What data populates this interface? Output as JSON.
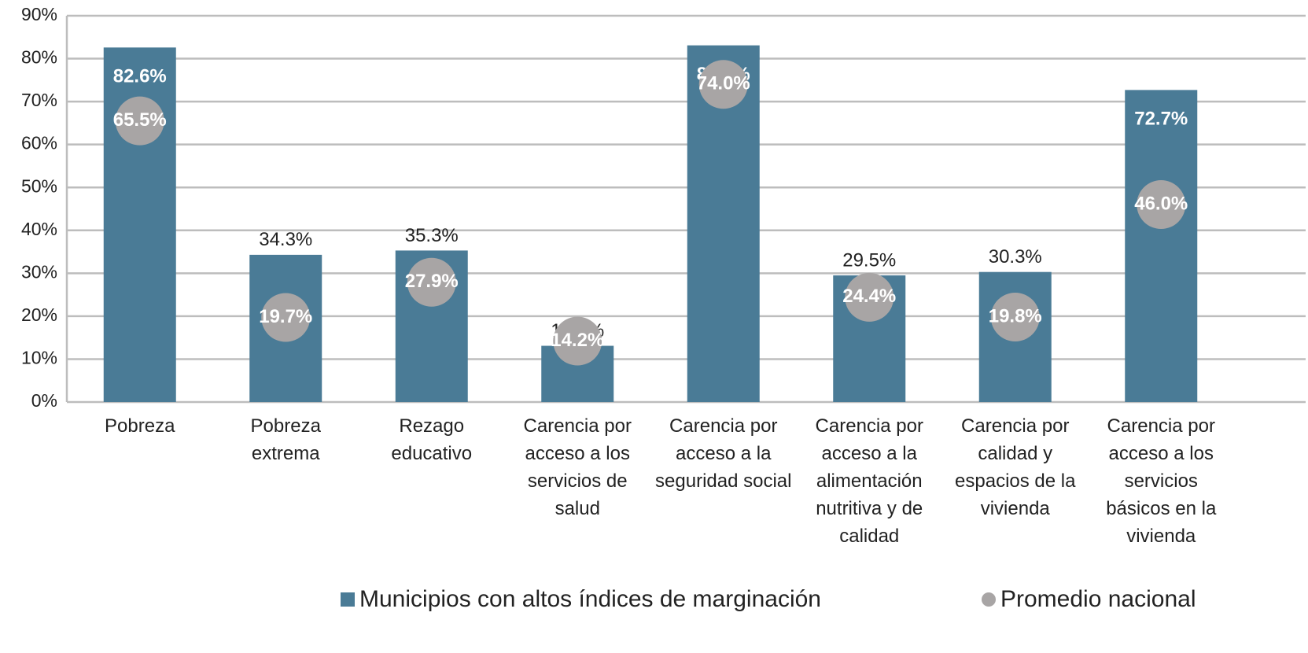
{
  "chart_data": {
    "type": "bar",
    "categories": [
      "Pobreza",
      "Pobreza extrema",
      "Rezago educativo",
      "Carencia por acceso a los servicios de salud",
      "Carencia por acceso a la seguridad social",
      "Carencia por acceso a la alimentación nutritiva y de calidad",
      "Carencia por calidad y espacios de la vivienda",
      "Carencia por acceso a los servicios básicos en la vivienda"
    ],
    "series": [
      {
        "name": "Municipios con altos índices de marginación",
        "color": "#4a7b96",
        "mark": "bar",
        "values": [
          82.6,
          34.3,
          35.3,
          13.1,
          83.1,
          29.5,
          30.3,
          72.7
        ],
        "value_labels": [
          "82.6%",
          "34.3%",
          "35.3%",
          "13.1%",
          "83.1%",
          "29.5%",
          "30.3%",
          "72.7%"
        ]
      },
      {
        "name": "Promedio nacional",
        "color": "#a8a5a5",
        "mark": "dot",
        "values": [
          65.5,
          19.7,
          27.9,
          14.2,
          74.0,
          24.4,
          19.8,
          46.0
        ],
        "value_labels": [
          "65.5%",
          "19.7%",
          "27.9%",
          "14.2%",
          "74.0%",
          "24.4%",
          "19.8%",
          "46.0%"
        ]
      }
    ],
    "ylim": [
      0,
      90
    ],
    "yticks": [
      {
        "value": 0,
        "label": "0%"
      },
      {
        "value": 10,
        "label": "10%"
      },
      {
        "value": 20,
        "label": "20%"
      },
      {
        "value": 30,
        "label": "30%"
      },
      {
        "value": 40,
        "label": "40%"
      },
      {
        "value": 50,
        "label": "50%"
      },
      {
        "value": 60,
        "label": "60%"
      },
      {
        "value": 70,
        "label": "70%"
      },
      {
        "value": 80,
        "label": "80%"
      },
      {
        "value": 90,
        "label": "90%"
      }
    ],
    "grid": true
  }
}
